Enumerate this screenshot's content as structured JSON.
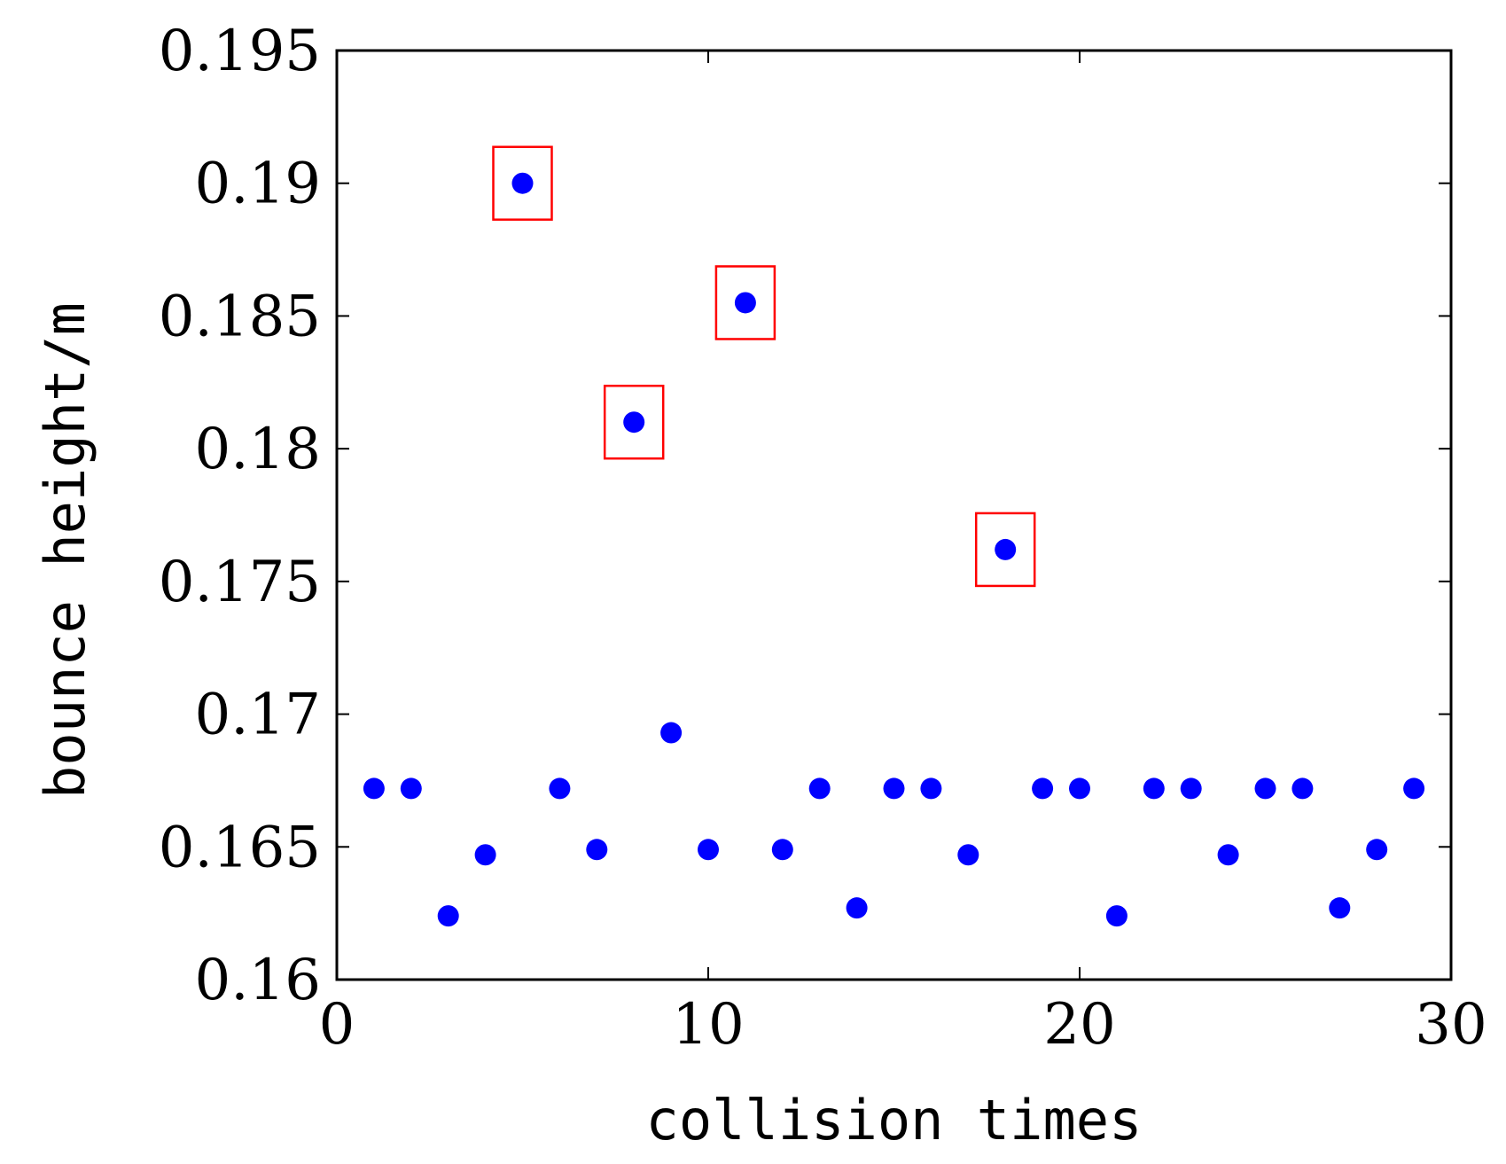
{
  "chart_data": {
    "type": "scatter",
    "title": "",
    "xlabel": "collision times",
    "ylabel": "bounce height/m",
    "xlim": [
      0,
      30
    ],
    "ylim": [
      0.16,
      0.195
    ],
    "xticks": [
      0,
      10,
      20,
      30
    ],
    "xtick_labels": [
      "0",
      "10",
      "20",
      "30"
    ],
    "yticks": [
      0.16,
      0.165,
      0.17,
      0.175,
      0.18,
      0.185,
      0.19,
      0.195
    ],
    "ytick_labels": [
      "0.16",
      "0.165",
      "0.17",
      "0.175",
      "0.18",
      "0.185",
      "0.19",
      "0.195"
    ],
    "grid": false,
    "marker_color": "#0000ff",
    "highlight_color": "#ff0000",
    "x": [
      1,
      2,
      3,
      4,
      5,
      6,
      7,
      8,
      9,
      10,
      11,
      12,
      13,
      14,
      15,
      16,
      17,
      18,
      19,
      20,
      21,
      22,
      23,
      24,
      25,
      26,
      27,
      28,
      29
    ],
    "y": [
      0.1672,
      0.1672,
      0.1624,
      0.1647,
      0.19,
      0.1672,
      0.1649,
      0.181,
      0.1693,
      0.1649,
      0.1855,
      0.1649,
      0.1672,
      0.1627,
      0.1672,
      0.1672,
      0.1647,
      0.1762,
      0.1672,
      0.1672,
      0.1624,
      0.1672,
      0.1672,
      0.1647,
      0.1672,
      0.1672,
      0.1627,
      0.1649,
      0.1672
    ],
    "highlighted_x": [
      5,
      8,
      11,
      18
    ]
  }
}
